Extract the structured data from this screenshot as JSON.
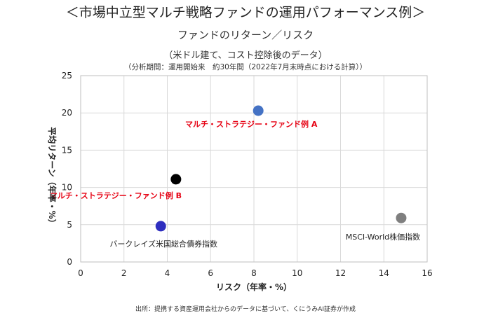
{
  "header": {
    "title": "＜市場中立型マルチ戦略ファンドの運用パフォーマンス例＞",
    "subtitle": "ファンドのリターン／リスク",
    "subtitle2": "（米ドル建て、コスト控除後のデータ）",
    "subtitle3": "（分析期間：運用開始来　約30年間（2022年7月末時点における計算））"
  },
  "footer": {
    "source": "出所：提携する資産運用会社からのデータに基づいて、くにうみAI証券が作成"
  },
  "chart_data": {
    "type": "scatter",
    "title": "ファンドのリターン／リスク",
    "xlabel": "リスク（年率・%）",
    "ylabel": "平均リターン（年率・%）",
    "xlim": [
      0,
      16
    ],
    "ylim": [
      0,
      25
    ],
    "xticks": [
      0,
      2,
      4,
      6,
      8,
      10,
      12,
      14,
      16
    ],
    "yticks": [
      0,
      5,
      10,
      15,
      20,
      25
    ],
    "grid": true,
    "points": [
      {
        "label": "マルチ・ストラテジー・ファンド例 A",
        "x": 8.2,
        "y": 20.3,
        "color": "#4472c4",
        "label_color": "#e60012"
      },
      {
        "label": "マルチ・ストラテジー・ファンド例 B",
        "x": 4.4,
        "y": 11.1,
        "color": "#000000",
        "label_color": "#e60012"
      },
      {
        "label": "バークレイズ米国総合債券指数",
        "x": 3.7,
        "y": 4.8,
        "color": "#2e2ebf",
        "label_color": "#222222"
      },
      {
        "label": "MSCI-World株価指数",
        "x": 14.8,
        "y": 5.9,
        "color": "#7f7f7f",
        "label_color": "#222222"
      }
    ]
  }
}
